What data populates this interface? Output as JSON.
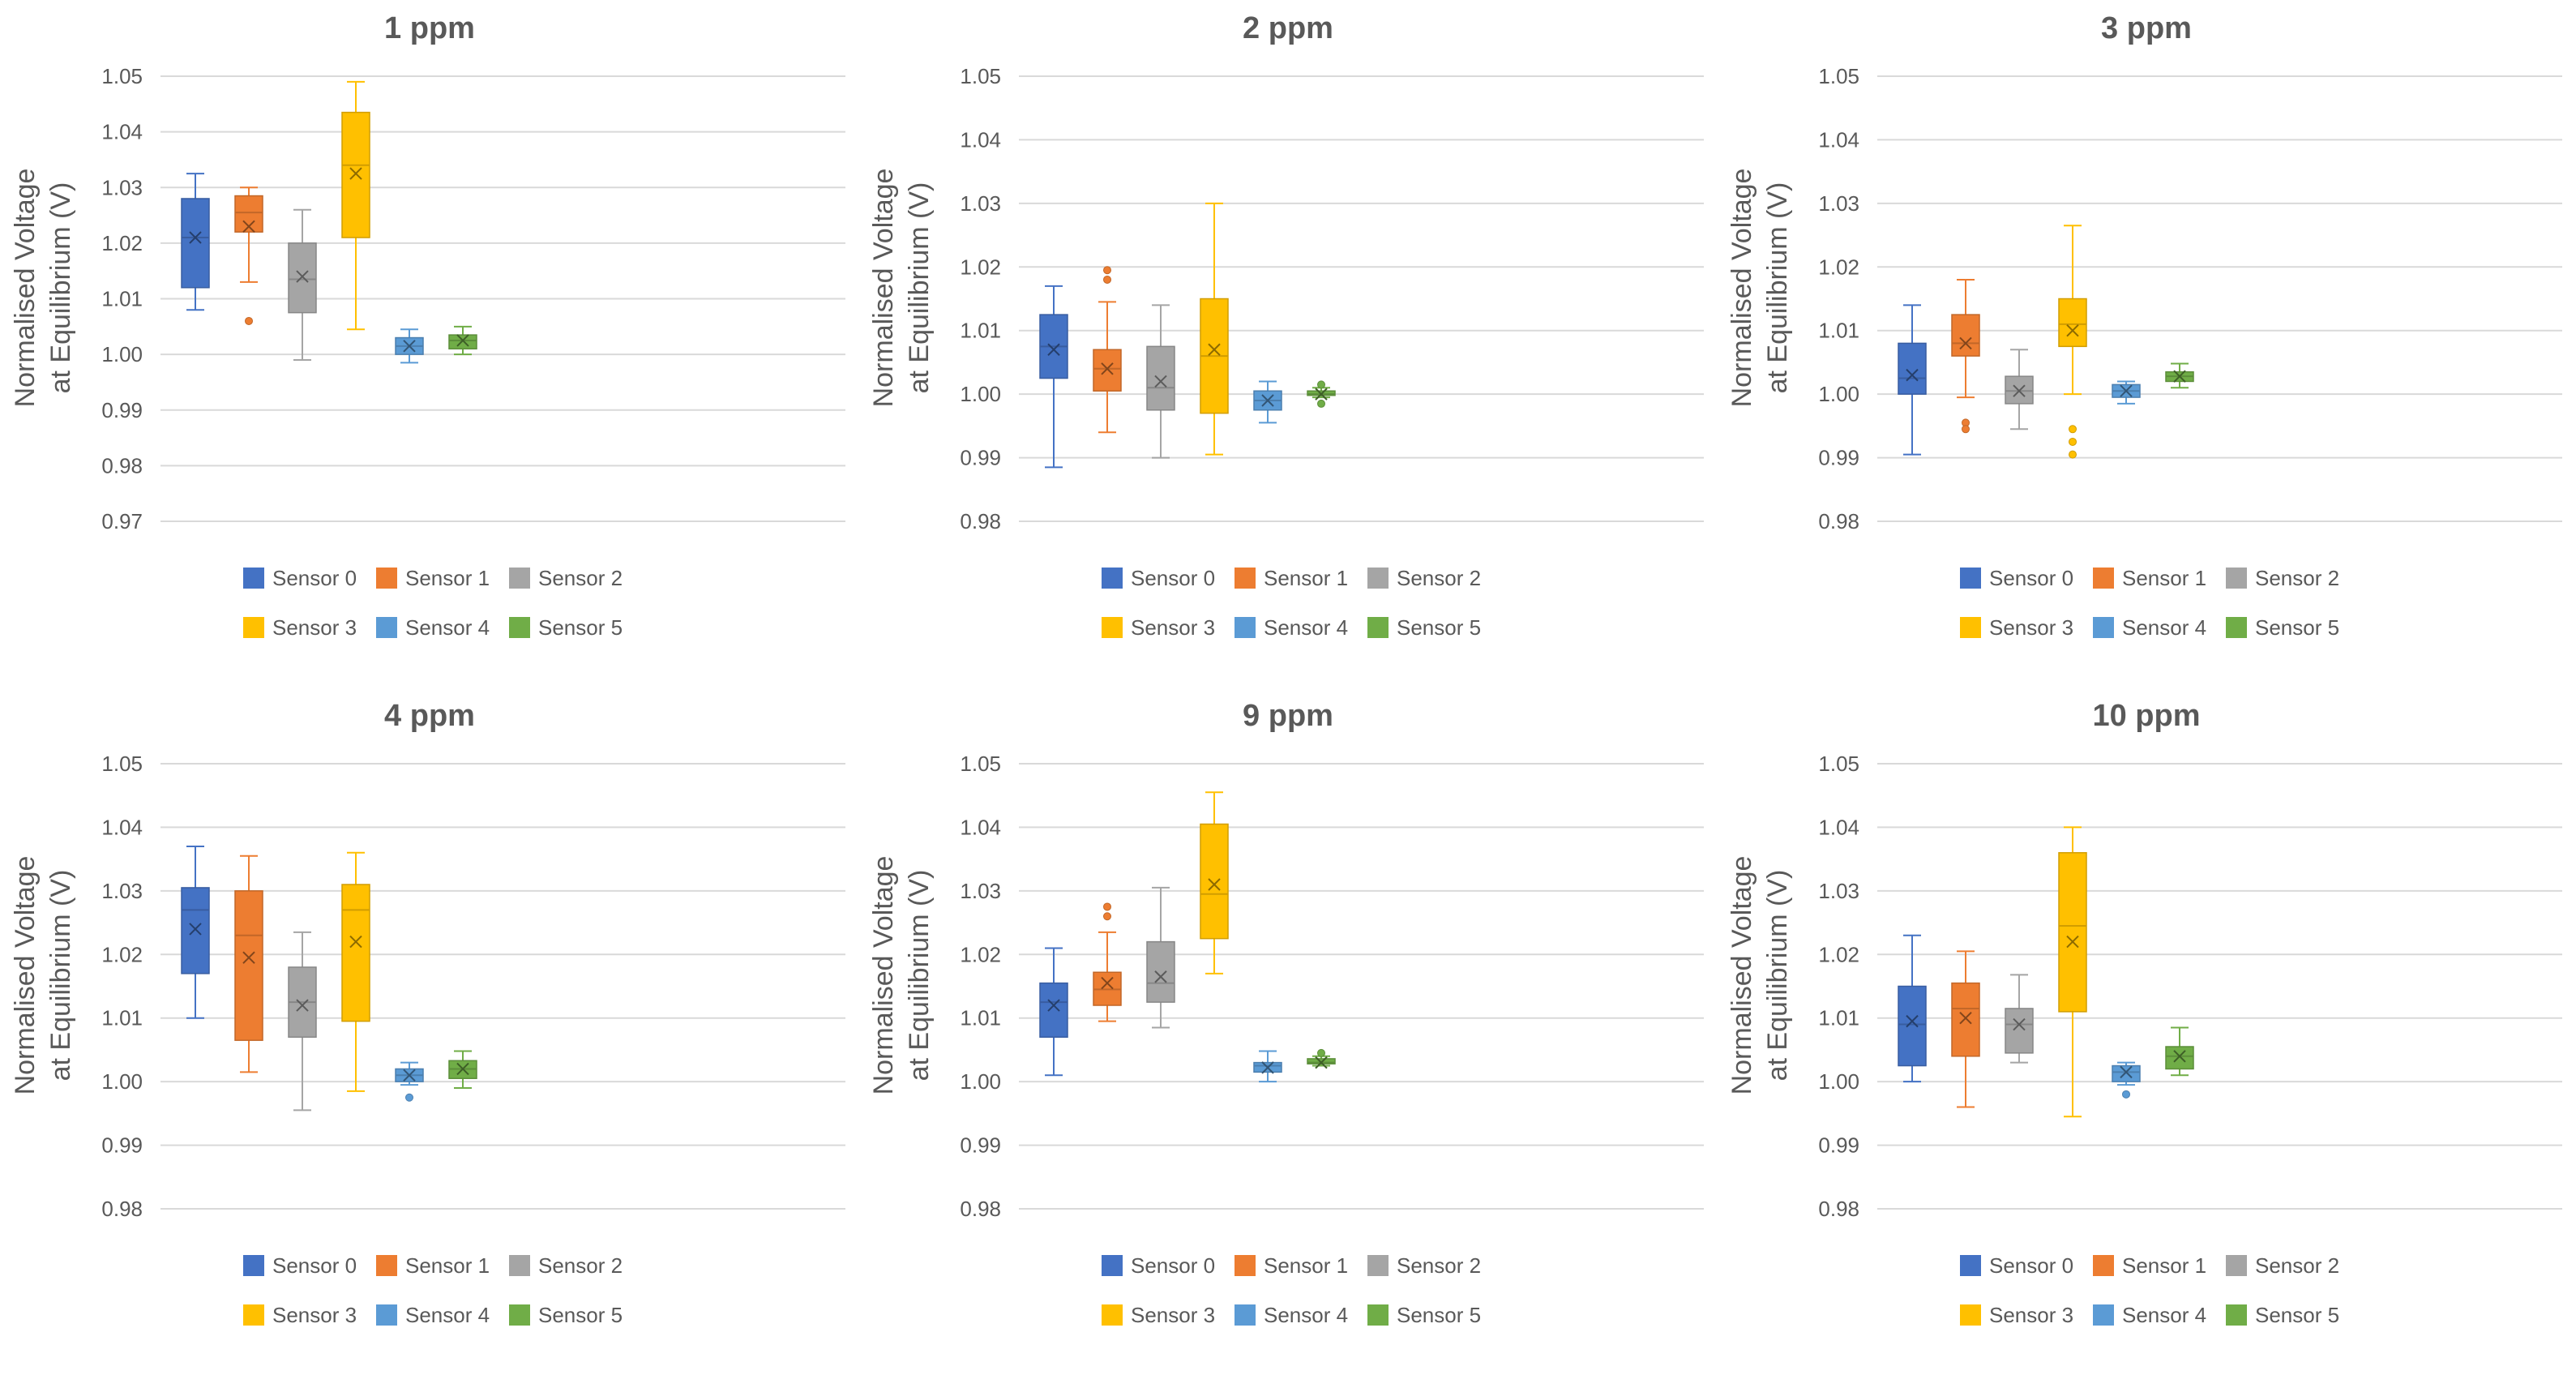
{
  "colors": {
    "sensor0": "#4472C4",
    "sensor1": "#ED7D31",
    "sensor2": "#A5A5A5",
    "sensor3": "#FFC000",
    "sensor4": "#5B9BD5",
    "sensor5": "#70AD47",
    "text": "#595959",
    "grid": "#D9D9D9"
  },
  "chart_data": [
    {
      "type": "boxplot",
      "title": "1 ppm",
      "ylabel_line1": "Normalised Voltage",
      "ylabel_line2": "at Equilibrium (V)",
      "ylim": [
        0.97,
        1.05
      ],
      "yticks": [
        "0.97",
        "0.98",
        "0.99",
        "1.00",
        "1.01",
        "1.02",
        "1.03",
        "1.04",
        "1.05"
      ],
      "series": [
        {
          "name": "Sensor 0",
          "min": 1.008,
          "q1": 1.012,
          "median": 1.021,
          "q3": 1.028,
          "max": 1.0325,
          "mean": 1.021,
          "outliers": []
        },
        {
          "name": "Sensor 1",
          "min": 1.013,
          "q1": 1.022,
          "median": 1.0255,
          "q3": 1.0285,
          "max": 1.03,
          "mean": 1.023,
          "outliers": [
            1.006
          ]
        },
        {
          "name": "Sensor 2",
          "min": 0.999,
          "q1": 1.0075,
          "median": 1.0135,
          "q3": 1.02,
          "max": 1.026,
          "mean": 1.014,
          "outliers": []
        },
        {
          "name": "Sensor 3",
          "min": 1.0045,
          "q1": 1.021,
          "median": 1.034,
          "q3": 1.0435,
          "max": 1.049,
          "mean": 1.0325,
          "outliers": []
        },
        {
          "name": "Sensor 4",
          "min": 0.9985,
          "q1": 1.0,
          "median": 1.0015,
          "q3": 1.003,
          "max": 1.0045,
          "mean": 1.0015,
          "outliers": []
        },
        {
          "name": "Sensor 5",
          "min": 1.0,
          "q1": 1.001,
          "median": 1.0025,
          "q3": 1.0035,
          "max": 1.005,
          "mean": 1.0025,
          "outliers": []
        }
      ]
    },
    {
      "type": "boxplot",
      "title": "2 ppm",
      "ylabel_line1": "Normalised Voltage",
      "ylabel_line2": "at Equilibrium (V)",
      "ylim": [
        0.98,
        1.05
      ],
      "yticks": [
        "0.98",
        "0.99",
        "1.00",
        "1.01",
        "1.02",
        "1.03",
        "1.04",
        "1.05"
      ],
      "series": [
        {
          "name": "Sensor 0",
          "min": 0.9885,
          "q1": 1.0025,
          "median": 1.0075,
          "q3": 1.0125,
          "max": 1.017,
          "mean": 1.007,
          "outliers": []
        },
        {
          "name": "Sensor 1",
          "min": 0.994,
          "q1": 1.0005,
          "median": 1.004,
          "q3": 1.007,
          "max": 1.0145,
          "mean": 1.004,
          "outliers": [
            1.0195,
            1.018
          ]
        },
        {
          "name": "Sensor 2",
          "min": 0.99,
          "q1": 0.9975,
          "median": 1.001,
          "q3": 1.0075,
          "max": 1.014,
          "mean": 1.002,
          "outliers": []
        },
        {
          "name": "Sensor 3",
          "min": 0.9905,
          "q1": 0.997,
          "median": 1.006,
          "q3": 1.015,
          "max": 1.03,
          "mean": 1.007,
          "outliers": []
        },
        {
          "name": "Sensor 4",
          "min": 0.9955,
          "q1": 0.9975,
          "median": 0.999,
          "q3": 1.0005,
          "max": 1.002,
          "mean": 0.999,
          "outliers": []
        },
        {
          "name": "Sensor 5",
          "min": 0.9995,
          "q1": 0.9998,
          "median": 1.0,
          "q3": 1.0005,
          "max": 1.001,
          "mean": 1.0,
          "outliers": [
            1.0015,
            0.9985
          ]
        }
      ]
    },
    {
      "type": "boxplot",
      "title": "3 ppm",
      "ylabel_line1": "Normalised Voltage",
      "ylabel_line2": "at Equilibrium (V)",
      "ylim": [
        0.98,
        1.05
      ],
      "yticks": [
        "0.98",
        "0.99",
        "1.00",
        "1.01",
        "1.02",
        "1.03",
        "1.04",
        "1.05"
      ],
      "series": [
        {
          "name": "Sensor 0",
          "min": 0.9905,
          "q1": 1.0,
          "median": 1.0025,
          "q3": 1.008,
          "max": 1.014,
          "mean": 1.003,
          "outliers": []
        },
        {
          "name": "Sensor 1",
          "min": 0.9995,
          "q1": 1.006,
          "median": 1.008,
          "q3": 1.0125,
          "max": 1.018,
          "mean": 1.008,
          "outliers": [
            0.9955,
            0.9945
          ]
        },
        {
          "name": "Sensor 2",
          "min": 0.9945,
          "q1": 0.9985,
          "median": 1.0005,
          "q3": 1.0028,
          "max": 1.007,
          "mean": 1.0005,
          "outliers": []
        },
        {
          "name": "Sensor 3",
          "min": 1.0,
          "q1": 1.0075,
          "median": 1.011,
          "q3": 1.015,
          "max": 1.0265,
          "mean": 1.01,
          "outliers": [
            0.9945,
            0.9925,
            0.9905
          ]
        },
        {
          "name": "Sensor 4",
          "min": 0.9985,
          "q1": 0.9995,
          "median": 1.0005,
          "q3": 1.0015,
          "max": 1.002,
          "mean": 1.0005,
          "outliers": []
        },
        {
          "name": "Sensor 5",
          "min": 1.001,
          "q1": 1.002,
          "median": 1.0028,
          "q3": 1.0035,
          "max": 1.0048,
          "mean": 1.0028,
          "outliers": []
        }
      ]
    },
    {
      "type": "boxplot",
      "title": "4 ppm",
      "ylabel_line1": "Normalised Voltage",
      "ylabel_line2": "at Equilibrium (V)",
      "ylim": [
        0.98,
        1.05
      ],
      "yticks": [
        "0.98",
        "0.99",
        "1.00",
        "1.01",
        "1.02",
        "1.03",
        "1.04",
        "1.05"
      ],
      "series": [
        {
          "name": "Sensor 0",
          "min": 1.01,
          "q1": 1.017,
          "median": 1.027,
          "q3": 1.0305,
          "max": 1.037,
          "mean": 1.024,
          "outliers": []
        },
        {
          "name": "Sensor 1",
          "min": 1.0015,
          "q1": 1.0065,
          "median": 1.023,
          "q3": 1.03,
          "max": 1.0355,
          "mean": 1.0195,
          "outliers": []
        },
        {
          "name": "Sensor 2",
          "min": 0.9955,
          "q1": 1.007,
          "median": 1.0125,
          "q3": 1.018,
          "max": 1.0235,
          "mean": 1.012,
          "outliers": []
        },
        {
          "name": "Sensor 3",
          "min": 0.9985,
          "q1": 1.0095,
          "median": 1.027,
          "q3": 1.031,
          "max": 1.036,
          "mean": 1.022,
          "outliers": []
        },
        {
          "name": "Sensor 4",
          "min": 0.9995,
          "q1": 1.0,
          "median": 1.001,
          "q3": 1.002,
          "max": 1.003,
          "mean": 1.001,
          "outliers": [
            0.9975
          ]
        },
        {
          "name": "Sensor 5",
          "min": 0.999,
          "q1": 1.0005,
          "median": 1.002,
          "q3": 1.0033,
          "max": 1.0048,
          "mean": 1.002,
          "outliers": []
        }
      ]
    },
    {
      "type": "boxplot",
      "title": "9 ppm",
      "ylabel_line1": "Normalised Voltage",
      "ylabel_line2": "at Equilibrium (V)",
      "ylim": [
        0.98,
        1.05
      ],
      "yticks": [
        "0.98",
        "0.99",
        "1.00",
        "1.01",
        "1.02",
        "1.03",
        "1.04",
        "1.05"
      ],
      "series": [
        {
          "name": "Sensor 0",
          "min": 1.001,
          "q1": 1.007,
          "median": 1.0125,
          "q3": 1.0155,
          "max": 1.021,
          "mean": 1.012,
          "outliers": []
        },
        {
          "name": "Sensor 1",
          "min": 1.0095,
          "q1": 1.012,
          "median": 1.0145,
          "q3": 1.0172,
          "max": 1.0235,
          "mean": 1.0155,
          "outliers": [
            1.0275,
            1.026
          ]
        },
        {
          "name": "Sensor 2",
          "min": 1.0085,
          "q1": 1.0125,
          "median": 1.0155,
          "q3": 1.022,
          "max": 1.0305,
          "mean": 1.0165,
          "outliers": []
        },
        {
          "name": "Sensor 3",
          "min": 1.017,
          "q1": 1.0225,
          "median": 1.0295,
          "q3": 1.0405,
          "max": 1.0455,
          "mean": 1.031,
          "outliers": []
        },
        {
          "name": "Sensor 4",
          "min": 1.0,
          "q1": 1.0015,
          "median": 1.0025,
          "q3": 1.003,
          "max": 1.0048,
          "mean": 1.0022,
          "outliers": []
        },
        {
          "name": "Sensor 5",
          "min": 1.0025,
          "q1": 1.0028,
          "median": 1.003,
          "q3": 1.0036,
          "max": 1.004,
          "mean": 1.003,
          "outliers": [
            1.0045
          ]
        }
      ]
    },
    {
      "type": "boxplot",
      "title": "10 ppm",
      "ylabel_line1": "Normalised Voltage",
      "ylabel_line2": "at Equilibrium (V)",
      "ylim": [
        0.98,
        1.05
      ],
      "yticks": [
        "0.98",
        "0.99",
        "1.00",
        "1.01",
        "1.02",
        "1.03",
        "1.04",
        "1.05"
      ],
      "series": [
        {
          "name": "Sensor 0",
          "min": 1.0,
          "q1": 1.0025,
          "median": 1.009,
          "q3": 1.015,
          "max": 1.023,
          "mean": 1.0095,
          "outliers": []
        },
        {
          "name": "Sensor 1",
          "min": 0.996,
          "q1": 1.004,
          "median": 1.0115,
          "q3": 1.0155,
          "max": 1.0205,
          "mean": 1.01,
          "outliers": []
        },
        {
          "name": "Sensor 2",
          "min": 1.003,
          "q1": 1.0045,
          "median": 1.009,
          "q3": 1.0115,
          "max": 1.0168,
          "mean": 1.009,
          "outliers": []
        },
        {
          "name": "Sensor 3",
          "min": 0.9945,
          "q1": 1.011,
          "median": 1.0245,
          "q3": 1.036,
          "max": 1.04,
          "mean": 1.022,
          "outliers": []
        },
        {
          "name": "Sensor 4",
          "min": 0.9995,
          "q1": 1.0,
          "median": 1.0015,
          "q3": 1.0025,
          "max": 1.003,
          "mean": 1.0015,
          "outliers": [
            0.998
          ]
        },
        {
          "name": "Sensor 5",
          "min": 1.001,
          "q1": 1.002,
          "median": 1.004,
          "q3": 1.0055,
          "max": 1.0085,
          "mean": 1.004,
          "outliers": []
        }
      ]
    }
  ]
}
